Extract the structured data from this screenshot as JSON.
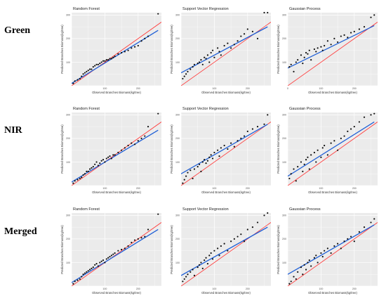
{
  "rows": [
    "Green",
    "NIR",
    "Merged"
  ],
  "colors": {
    "panel_bg": "#ebebeb",
    "grid": "#ffffff",
    "points": "#111111",
    "fit_line": "#1f5fd6",
    "one_to_one_line": "#ff4040"
  },
  "chart_data": [
    {
      "type": "scatter",
      "row": "Green",
      "title": "Random Forest",
      "xlabel": "Observed Branches Biomass(kg/tree)",
      "ylabel": "Predicted Branches Biomass(kg/tree)",
      "x_ticks": [
        "100",
        "200"
      ],
      "y_ticks": [
        "100",
        "200",
        "300"
      ],
      "xlim": [
        0,
        270
      ],
      "ylim": [
        0,
        310
      ],
      "grid": true,
      "x": [
        5,
        10,
        18,
        25,
        30,
        35,
        40,
        45,
        50,
        55,
        60,
        65,
        70,
        75,
        80,
        85,
        90,
        95,
        100,
        105,
        110,
        115,
        120,
        125,
        130,
        140,
        150,
        160,
        170,
        180,
        190,
        200,
        210,
        220,
        230,
        260
      ],
      "y": [
        10,
        20,
        25,
        30,
        40,
        50,
        55,
        60,
        65,
        70,
        70,
        80,
        85,
        90,
        90,
        95,
        100,
        105,
        105,
        110,
        110,
        115,
        115,
        120,
        125,
        135,
        140,
        145,
        150,
        160,
        165,
        170,
        190,
        200,
        210,
        305
      ],
      "fit": [
        [
          0,
          10
        ],
        [
          260,
          235
        ]
      ]
    },
    {
      "type": "scatter",
      "row": "Green",
      "title": "Support Vector Regression",
      "xlabel": "Observed Branches Biomass(kg/tree)",
      "ylabel": "Predicted Branches Biomass(kg/tree)",
      "x_ticks": [
        "100",
        "200"
      ],
      "y_ticks": [
        "100",
        "200",
        "300"
      ],
      "xlim": [
        0,
        270
      ],
      "ylim": [
        0,
        310
      ],
      "grid": true,
      "x": [
        5,
        10,
        15,
        20,
        28,
        35,
        40,
        50,
        55,
        60,
        65,
        70,
        75,
        80,
        85,
        90,
        95,
        100,
        110,
        115,
        120,
        130,
        140,
        150,
        160,
        170,
        180,
        190,
        200,
        215,
        230,
        250,
        260
      ],
      "y": [
        30,
        40,
        50,
        60,
        70,
        80,
        90,
        95,
        100,
        110,
        90,
        120,
        115,
        130,
        100,
        140,
        150,
        120,
        160,
        145,
        130,
        170,
        180,
        160,
        175,
        190,
        210,
        220,
        240,
        230,
        200,
        310,
        310
      ],
      "fit": [
        [
          0,
          55
        ],
        [
          260,
          250
        ]
      ]
    },
    {
      "type": "scatter",
      "row": "Green",
      "title": "Gaussian Process",
      "xlabel": "Observed Branches Biomass(kg/tree)",
      "ylabel": "Predicted Branches Biomass(kg/tree)",
      "x_ticks": [
        "0",
        "100",
        "200"
      ],
      "y_ticks": [
        "100",
        "200",
        "300"
      ],
      "xlim": [
        0,
        270
      ],
      "ylim": [
        0,
        310
      ],
      "grid": true,
      "x": [
        5,
        10,
        18,
        25,
        30,
        40,
        45,
        50,
        55,
        60,
        65,
        70,
        80,
        85,
        90,
        100,
        105,
        110,
        120,
        130,
        140,
        150,
        160,
        170,
        180,
        190,
        200,
        215,
        230,
        250,
        260
      ],
      "y": [
        80,
        90,
        60,
        100,
        110,
        130,
        95,
        120,
        140,
        135,
        150,
        110,
        155,
        145,
        160,
        165,
        150,
        170,
        190,
        175,
        200,
        185,
        210,
        215,
        205,
        225,
        230,
        240,
        250,
        290,
        300
      ],
      "fit": [
        [
          0,
          75
        ],
        [
          260,
          255
        ]
      ]
    },
    {
      "type": "scatter",
      "row": "NIR",
      "title": "Random Forest",
      "xlabel": "Observed Branches Biomass(kg/tree)",
      "ylabel": "Predicted Branches Biomass(kg/tree)",
      "x_ticks": [
        "100",
        "200"
      ],
      "y_ticks": [
        "100",
        "200",
        "300"
      ],
      "xlim": [
        0,
        270
      ],
      "ylim": [
        0,
        310
      ],
      "grid": true,
      "x": [
        5,
        10,
        18,
        25,
        30,
        35,
        40,
        45,
        50,
        55,
        60,
        65,
        70,
        75,
        80,
        85,
        90,
        95,
        100,
        105,
        110,
        115,
        120,
        125,
        130,
        140,
        150,
        160,
        170,
        180,
        190,
        200,
        210,
        220,
        230,
        260
      ],
      "y": [
        10,
        20,
        25,
        30,
        35,
        45,
        50,
        60,
        60,
        70,
        75,
        80,
        90,
        100,
        85,
        95,
        105,
        110,
        100,
        115,
        120,
        125,
        115,
        130,
        130,
        140,
        150,
        160,
        170,
        180,
        175,
        190,
        200,
        210,
        250,
        305
      ],
      "fit": [
        [
          0,
          15
        ],
        [
          260,
          235
        ]
      ]
    },
    {
      "type": "scatter",
      "row": "NIR",
      "title": "Support Vector Regression",
      "xlabel": "Observed Branches Biomass(kg/tree)",
      "ylabel": "Predicted Branches Biomass(kg/tree)",
      "x_ticks": [
        "100",
        "200"
      ],
      "y_ticks": [
        "100",
        "200",
        "300"
      ],
      "xlim": [
        0,
        270
      ],
      "ylim": [
        0,
        310
      ],
      "grid": true,
      "x": [
        5,
        10,
        15,
        20,
        28,
        35,
        40,
        50,
        55,
        60,
        65,
        70,
        75,
        80,
        85,
        90,
        95,
        100,
        110,
        115,
        120,
        130,
        140,
        150,
        160,
        170,
        180,
        190,
        200,
        215,
        230,
        250,
        260
      ],
      "y": [
        10,
        25,
        40,
        55,
        65,
        30,
        70,
        80,
        90,
        60,
        100,
        110,
        95,
        105,
        120,
        130,
        115,
        140,
        150,
        125,
        160,
        170,
        155,
        180,
        165,
        190,
        200,
        210,
        230,
        240,
        250,
        260,
        300
      ],
      "fit": [
        [
          0,
          50
        ],
        [
          260,
          260
        ]
      ]
    },
    {
      "type": "scatter",
      "row": "NIR",
      "title": "Gaussian Process",
      "xlabel": "Observed Branches Biomass(kg/tree)",
      "ylabel": "Predicted Branches Biomass(kg/tree)",
      "x_ticks": [
        "100",
        "200"
      ],
      "y_ticks": [
        "100",
        "200",
        "300"
      ],
      "xlim": [
        0,
        270
      ],
      "ylim": [
        0,
        310
      ],
      "grid": true,
      "x": [
        5,
        10,
        18,
        25,
        30,
        40,
        45,
        50,
        55,
        60,
        65,
        70,
        80,
        85,
        90,
        100,
        105,
        110,
        120,
        130,
        140,
        150,
        160,
        170,
        180,
        190,
        200,
        215,
        230,
        250,
        260
      ],
      "y": [
        30,
        50,
        70,
        20,
        80,
        100,
        60,
        90,
        110,
        120,
        70,
        130,
        140,
        100,
        150,
        120,
        160,
        170,
        130,
        180,
        190,
        150,
        200,
        210,
        230,
        240,
        250,
        270,
        290,
        300,
        305
      ],
      "fit": [
        [
          0,
          40
        ],
        [
          260,
          270
        ]
      ]
    },
    {
      "type": "scatter",
      "row": "Merged",
      "title": "Random Forest",
      "xlabel": "Observed Branches Biomass(kg/tree)",
      "ylabel": "Predicted Branches Biomass(kg/tree)",
      "x_ticks": [
        "100",
        "200"
      ],
      "y_ticks": [
        "100",
        "200",
        "300"
      ],
      "xlim": [
        0,
        270
      ],
      "ylim": [
        0,
        310
      ],
      "grid": true,
      "x": [
        5,
        10,
        18,
        25,
        30,
        35,
        40,
        45,
        50,
        55,
        60,
        65,
        70,
        75,
        80,
        85,
        90,
        95,
        100,
        105,
        110,
        115,
        120,
        125,
        130,
        140,
        150,
        160,
        170,
        180,
        190,
        200,
        210,
        220,
        230,
        260
      ],
      "y": [
        10,
        20,
        25,
        30,
        40,
        50,
        55,
        60,
        65,
        70,
        75,
        80,
        90,
        95,
        85,
        100,
        105,
        110,
        100,
        115,
        120,
        125,
        130,
        135,
        140,
        150,
        155,
        160,
        170,
        185,
        195,
        200,
        205,
        210,
        240,
        305
      ],
      "fit": [
        [
          0,
          15
        ],
        [
          260,
          240
        ]
      ]
    },
    {
      "type": "scatter",
      "row": "Merged",
      "title": "Support Vector Regression",
      "xlabel": "Observed Branches Biomass(kg/tree)",
      "ylabel": "Predicted Branches Biomass(kg/tree)",
      "x_ticks": [
        "100",
        "200"
      ],
      "y_ticks": [
        "100",
        "200",
        "300"
      ],
      "xlim": [
        0,
        270
      ],
      "ylim": [
        0,
        310
      ],
      "grid": true,
      "x": [
        5,
        10,
        15,
        20,
        28,
        35,
        40,
        50,
        55,
        60,
        65,
        70,
        75,
        80,
        85,
        90,
        95,
        100,
        110,
        115,
        120,
        130,
        140,
        150,
        160,
        170,
        180,
        190,
        200,
        215,
        230,
        250,
        260
      ],
      "y": [
        20,
        30,
        40,
        50,
        60,
        70,
        45,
        80,
        90,
        100,
        75,
        110,
        120,
        95,
        130,
        140,
        115,
        150,
        160,
        130,
        170,
        180,
        150,
        190,
        200,
        210,
        220,
        190,
        240,
        250,
        270,
        300,
        310
      ],
      "fit": [
        [
          0,
          45
        ],
        [
          260,
          250
        ]
      ]
    },
    {
      "type": "scatter",
      "row": "Merged",
      "title": "Gaussian Process",
      "xlabel": "Observed Branches Biomass(kg/tree)",
      "ylabel": "Predicted Branches Biomass(kg/tree)",
      "x_ticks": [
        "100",
        "200"
      ],
      "y_ticks": [
        "100",
        "200",
        "300"
      ],
      "xlim": [
        0,
        270
      ],
      "ylim": [
        0,
        310
      ],
      "grid": true,
      "x": [
        5,
        10,
        18,
        25,
        30,
        40,
        45,
        50,
        55,
        60,
        65,
        70,
        80,
        85,
        90,
        100,
        105,
        110,
        120,
        130,
        140,
        150,
        160,
        170,
        180,
        190,
        200,
        215,
        230,
        250,
        260
      ],
      "y": [
        10,
        20,
        40,
        30,
        60,
        80,
        50,
        90,
        70,
        100,
        110,
        85,
        120,
        130,
        100,
        140,
        125,
        150,
        160,
        140,
        170,
        180,
        160,
        190,
        200,
        210,
        190,
        230,
        250,
        270,
        285
      ],
      "fit": [
        [
          0,
          50
        ],
        [
          260,
          260
        ]
      ]
    }
  ]
}
